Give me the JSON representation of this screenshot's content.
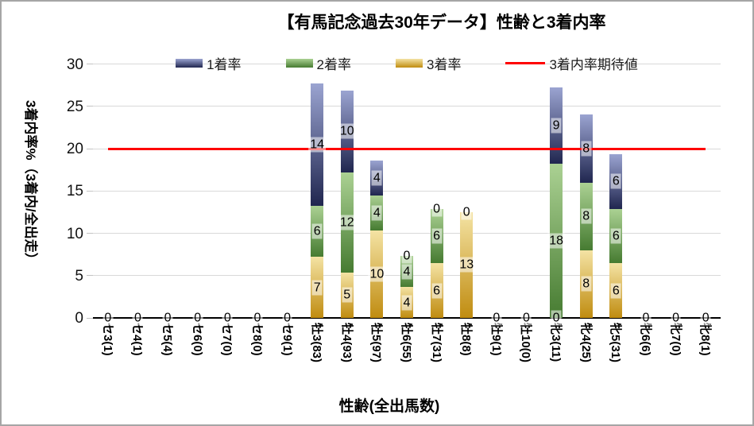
{
  "title": "【有馬記念過去30年データ】性齢と3着内率",
  "y_axis": {
    "title": "3着内率%（3着内/全出走）",
    "ticks": [
      0,
      5,
      10,
      15,
      20,
      25,
      30
    ],
    "max": 30
  },
  "x_axis": {
    "title": "性齢(全出馬数)"
  },
  "legend": [
    {
      "label": "1着率",
      "type": "box",
      "series_key": "blue"
    },
    {
      "label": "2着率",
      "type": "box",
      "series_key": "green"
    },
    {
      "label": "3着率",
      "type": "box",
      "series_key": "yellow"
    },
    {
      "label": "3着内率期待値",
      "type": "line",
      "series_key": "red"
    }
  ],
  "colors": {
    "blue_top": "#9ba4d1",
    "blue_bottom": "#20264f",
    "green_top": "#abd193",
    "green_bottom": "#467b31",
    "yellow_top": "#f4e3a4",
    "yellow_bottom": "#c08c10",
    "red": "#fe0000",
    "gridline": "#d9d9d9",
    "axis": "#000000"
  },
  "chart_data": {
    "type": "bar",
    "subtype": "stacked",
    "title": "【有馬記念過去30年データ】性齢と3着内率",
    "xlabel": "性齢(全出馬数)",
    "ylabel": "3着内率%（3着内/全出走）",
    "ylim": [
      0,
      30
    ],
    "grid": true,
    "legend_position": "top",
    "categories": [
      "セ3(1)",
      "セ4(1)",
      "セ5(4)",
      "セ6(0)",
      "セ7(0)",
      "セ8(0)",
      "セ9(1)",
      "牡3(83)",
      "牡4(93)",
      "牡5(97)",
      "牡6(55)",
      "牡7(31)",
      "牡8(8)",
      "牡9(1)",
      "牡10(0)",
      "牝3(11)",
      "牝4(25)",
      "牝5(31)",
      "牝6(6)",
      "牝7(0)",
      "牝8(1)"
    ],
    "series": [
      {
        "name": "3着率",
        "color_key": "yellow",
        "values": [
          0,
          0,
          0,
          0,
          0,
          0,
          0,
          7.23,
          5.38,
          10.31,
          3.64,
          6.45,
          12.5,
          0,
          0,
          0,
          8,
          6.45,
          0,
          0,
          0
        ],
        "labels": [
          "0",
          "0",
          "0",
          "0",
          "0",
          "0",
          "0",
          "7",
          "5",
          "10",
          "4",
          "6",
          "13",
          "0",
          "0",
          "0",
          "8",
          "6",
          "0",
          "0",
          "0"
        ]
      },
      {
        "name": "2着率",
        "color_key": "green",
        "values": [
          0,
          0,
          0,
          0,
          0,
          0,
          0,
          6.02,
          11.83,
          4.12,
          3.64,
          6.45,
          0,
          0,
          0,
          18.18,
          8,
          6.45,
          0,
          0,
          0
        ],
        "labels": [
          "0",
          "0",
          "0",
          "0",
          "0",
          "0",
          "0",
          "6",
          "12",
          "4",
          "4",
          "6",
          "0",
          "0",
          "0",
          "18",
          "8",
          "6",
          "0",
          "0",
          "0"
        ]
      },
      {
        "name": "1着率",
        "color_key": "blue",
        "values": [
          0,
          0,
          0,
          0,
          0,
          0,
          0,
          14.46,
          9.68,
          4.12,
          0,
          0,
          0,
          0,
          0,
          9.09,
          8,
          6.45,
          0,
          0,
          0
        ],
        "labels": [
          "0",
          "0",
          "0",
          "0",
          "0",
          "0",
          "0",
          "14",
          "10",
          "4",
          "0",
          "0",
          "0",
          "0",
          "0",
          "9",
          "8",
          "6",
          "0",
          "0",
          "0"
        ]
      }
    ],
    "expected_line": {
      "name": "3着内率期待値",
      "value": 20
    }
  }
}
